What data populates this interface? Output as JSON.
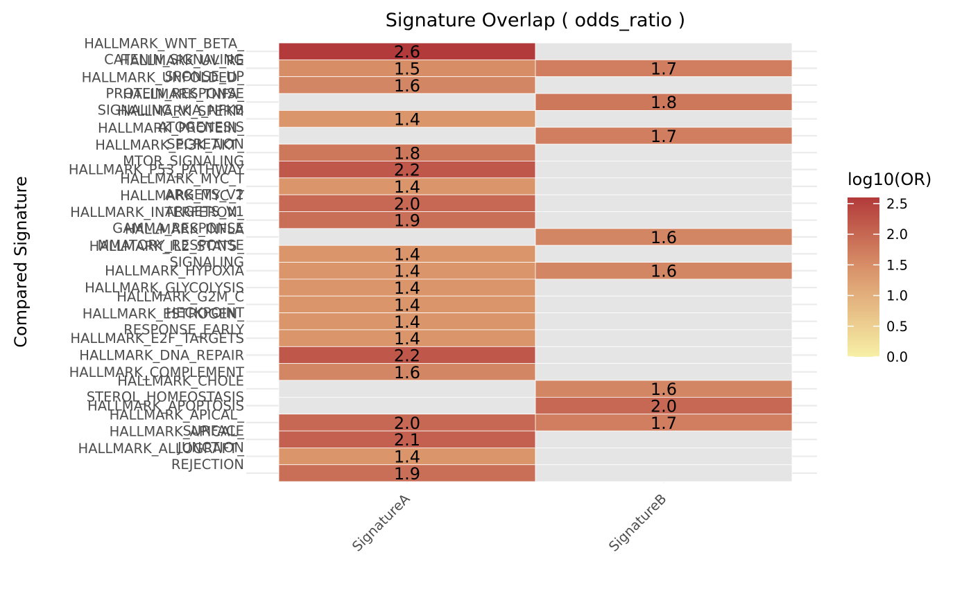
{
  "chart_data": {
    "type": "heatmap",
    "title": "Signature Overlap ( odds_ratio )",
    "xlabel": "",
    "ylabel": "Compared Signature",
    "columns": [
      "SignatureA",
      "SignatureB"
    ],
    "rows": [
      {
        "label": [
          "HALLMARK_WNT_BETA_",
          "CATENIN_SIGNALING"
        ],
        "values": [
          2.6,
          null
        ]
      },
      {
        "label": [
          "HALLMARK_UV_RE",
          "SPONSE_UP"
        ],
        "values": [
          1.5,
          1.7
        ]
      },
      {
        "label": [
          "HALLMARK_UNFOLDED_",
          "PROTEIN_RESPONSE"
        ],
        "values": [
          1.6,
          null
        ]
      },
      {
        "label": [
          "HALLMARK_TNFA_",
          "SIGNALING_VIA_NFKB"
        ],
        "values": [
          null,
          1.8
        ]
      },
      {
        "label": [
          "HALLMARK_SPERM",
          "ATOGENESIS"
        ],
        "values": [
          1.4,
          null
        ]
      },
      {
        "label": [
          "HALLMARK_PROTEIN_",
          "SECRETION"
        ],
        "values": [
          null,
          1.7
        ]
      },
      {
        "label": [
          "HALLMARK_PI3K_AKT_",
          "MTOR_SIGNALING"
        ],
        "values": [
          1.8,
          null
        ]
      },
      {
        "label": [
          "HALLMARK_P53_PATHWAY"
        ],
        "values": [
          2.2,
          null
        ]
      },
      {
        "label": [
          "HALLMARK_MYC_T",
          "ARGETS_V2"
        ],
        "values": [
          1.4,
          null
        ]
      },
      {
        "label": [
          "HALLMARK_MYC_T",
          "ARGETS_V1"
        ],
        "values": [
          2.0,
          null
        ]
      },
      {
        "label": [
          "HALLMARK_INTERFERON_",
          "GAMMA_RESPONSE"
        ],
        "values": [
          1.9,
          null
        ]
      },
      {
        "label": [
          "HALLMARK_INFLA",
          "MMATORY_RESPONSE"
        ],
        "values": [
          null,
          1.6
        ]
      },
      {
        "label": [
          "HALLMARK_IL2_STAT5_",
          "SIGNALING"
        ],
        "values": [
          1.4,
          null
        ]
      },
      {
        "label": [
          "HALLMARK_HYPOXIA"
        ],
        "values": [
          1.4,
          1.6
        ]
      },
      {
        "label": [
          "HALLMARK_GLYCOLYSIS"
        ],
        "values": [
          1.4,
          null
        ]
      },
      {
        "label": [
          "HALLMARK_G2M_C",
          "HECKPOINT"
        ],
        "values": [
          1.4,
          null
        ]
      },
      {
        "label": [
          "HALLMARK_ESTROGEN_",
          "RESPONSE_EARLY"
        ],
        "values": [
          1.4,
          null
        ]
      },
      {
        "label": [
          "HALLMARK_E2F_TARGETS"
        ],
        "values": [
          1.4,
          null
        ]
      },
      {
        "label": [
          "HALLMARK_DNA_REPAIR"
        ],
        "values": [
          2.2,
          null
        ]
      },
      {
        "label": [
          "HALLMARK_COMPLEMENT"
        ],
        "values": [
          1.6,
          null
        ]
      },
      {
        "label": [
          "HALLMARK_CHOLE",
          "STEROL_HOMEOSTASIS"
        ],
        "values": [
          null,
          1.6
        ]
      },
      {
        "label": [
          "HALLMARK_APOPTOSIS"
        ],
        "values": [
          null,
          2.0
        ]
      },
      {
        "label": [
          "HALLMARK_APICAL_",
          "SURFACE"
        ],
        "values": [
          2.0,
          1.7
        ]
      },
      {
        "label": [
          "HALLMARK_APICAL_",
          "JUNCTION"
        ],
        "values": [
          2.1,
          null
        ]
      },
      {
        "label": [
          "HALLMARK_ALLOGRAFT_",
          "REJECTION"
        ],
        "values": [
          1.4,
          null
        ]
      },
      {
        "label": [],
        "values": [
          1.9,
          null
        ]
      }
    ],
    "legend": {
      "title": "log10(OR)",
      "ticks": [
        "2.5",
        "2.0",
        "1.5",
        "1.0",
        "0.5",
        "0.0"
      ],
      "range": [
        0.0,
        2.6
      ],
      "colors": {
        "low": "#f7f0a6",
        "mid": "#d9936a",
        "high": "#b23a3a"
      },
      "placement": "right"
    },
    "missing_color": "#e5e5e5",
    "grid": true
  }
}
